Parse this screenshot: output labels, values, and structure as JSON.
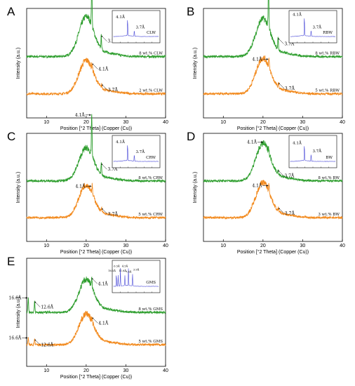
{
  "chart_data": [
    {
      "type": "line",
      "panel": "A",
      "xlabel": "Position [°2 Theta] (Copper (Cu))",
      "ylabel": "Intensity (a.u.)",
      "xlim": [
        5,
        40
      ],
      "xticks": [
        "10",
        "20",
        "30",
        "40"
      ],
      "series": [
        {
          "name": "8 wt.% CLW",
          "color": "#2e9e2e",
          "baseline": 0.56,
          "amorphous": 0.36,
          "sharp": [
            {
              "x": 21.4,
              "h": 0.44
            },
            {
              "x": 23.8,
              "h": 0.12
            }
          ]
        },
        {
          "name": "2 wt.% CLW",
          "color": "#f28a1e",
          "baseline": 0.22,
          "amorphous": 0.3,
          "sharp": [
            {
              "x": 21.5,
              "h": 0.05
            },
            {
              "x": 23.9,
              "h": 0.03
            }
          ]
        }
      ],
      "annotations": [
        {
          "text": "4.1Å",
          "x": 21.4,
          "series": 0,
          "dir": "left"
        },
        {
          "text": "3.7Å",
          "x": 23.8,
          "series": 0,
          "dir": "right"
        },
        {
          "text": "4.1Å",
          "x": 21.5,
          "series": 1,
          "dir": "right"
        },
        {
          "text": "3.7Å",
          "x": 23.9,
          "series": 1,
          "dir": "right"
        }
      ],
      "inset": {
        "name": "CLW",
        "peaks": [
          "4.1Å",
          "3.7Å"
        ],
        "heights": [
          0.85,
          0.3
        ]
      }
    },
    {
      "type": "line",
      "panel": "B",
      "xlabel": "Position [°2 Theta] (Copper (Cu))",
      "ylabel": "Intensity (a.u.)",
      "xlim": [
        5,
        40
      ],
      "xticks": [
        "10",
        "20",
        "30",
        "40"
      ],
      "series": [
        {
          "name": "8 wt.% RBW",
          "color": "#2e9e2e",
          "baseline": 0.56,
          "amorphous": 0.34,
          "sharp": [
            {
              "x": 21.4,
              "h": 0.42
            },
            {
              "x": 23.8,
              "h": 0.1
            }
          ]
        },
        {
          "name": "5 wt.% RBW",
          "color": "#f28a1e",
          "baseline": 0.22,
          "amorphous": 0.32,
          "sharp": [
            {
              "x": 21.5,
              "h": 0.08
            },
            {
              "x": 23.9,
              "h": 0.04
            }
          ]
        }
      ],
      "annotations": [
        {
          "text": "4.1Å",
          "x": 21.4,
          "series": 0,
          "dir": "left"
        },
        {
          "text": "3.7Å",
          "x": 23.8,
          "series": 0,
          "dir": "right"
        },
        {
          "text": "4.1Å",
          "x": 21.5,
          "series": 1,
          "dir": "left"
        },
        {
          "text": "3.7Å",
          "x": 23.9,
          "series": 1,
          "dir": "right"
        }
      ],
      "inset": {
        "name": "RBW",
        "peaks": [
          "4.1Å",
          "3.7Å"
        ],
        "heights": [
          0.95,
          0.3
        ]
      }
    },
    {
      "type": "line",
      "panel": "C",
      "xlabel": "Position [°2 Theta] (Copper (Cu))",
      "ylabel": "Intensity (a.u.)",
      "xlim": [
        5,
        40
      ],
      "xticks": [
        "10",
        "20",
        "30",
        "40"
      ],
      "series": [
        {
          "name": "8 wt.% CRW",
          "color": "#2e9e2e",
          "baseline": 0.56,
          "amorphous": 0.3,
          "sharp": [
            {
              "x": 21.4,
              "h": 0.38
            },
            {
              "x": 23.8,
              "h": 0.1
            }
          ]
        },
        {
          "name": "5 wt.% CRW",
          "color": "#f28a1e",
          "baseline": 0.22,
          "amorphous": 0.3,
          "sharp": [
            {
              "x": 21.5,
              "h": 0.07
            },
            {
              "x": 23.9,
              "h": 0.03
            }
          ]
        }
      ],
      "annotations": [
        {
          "text": "4.1Å",
          "x": 21.4,
          "series": 0,
          "dir": "left"
        },
        {
          "text": "3.7Å",
          "x": 23.8,
          "series": 0,
          "dir": "right"
        },
        {
          "text": "4.1Å",
          "x": 21.5,
          "series": 1,
          "dir": "left"
        },
        {
          "text": "3.7Å",
          "x": 23.9,
          "series": 1,
          "dir": "right"
        }
      ],
      "inset": {
        "name": "CRW",
        "peaks": [
          "4.1Å",
          "3.7Å"
        ],
        "heights": [
          0.85,
          0.32
        ]
      }
    },
    {
      "type": "line",
      "panel": "D",
      "xlabel": "Position [°2 Theta] (Copper (Cu))",
      "ylabel": "Intensity (a.u.)",
      "xlim": [
        5,
        40
      ],
      "xticks": [
        "10",
        "20",
        "30",
        "40"
      ],
      "series": [
        {
          "name": "8 wt.% BW",
          "color": "#2e9e2e",
          "baseline": 0.56,
          "amorphous": 0.34,
          "sharp": [
            {
              "x": 21.4,
              "h": 0.05
            },
            {
              "x": 23.8,
              "h": 0.03
            }
          ]
        },
        {
          "name": "3 wt.% BW",
          "color": "#f28a1e",
          "baseline": 0.22,
          "amorphous": 0.32,
          "sharp": [
            {
              "x": 21.5,
              "h": 0.06
            },
            {
              "x": 23.9,
              "h": 0.03
            }
          ]
        }
      ],
      "annotations": [
        {
          "text": "4.1Å",
          "x": 20.2,
          "series": 0,
          "dir": "left"
        },
        {
          "text": "3.7Å",
          "x": 23.8,
          "series": 0,
          "dir": "right"
        },
        {
          "text": "4.1Å",
          "x": 21.5,
          "series": 1,
          "dir": "left"
        },
        {
          "text": "3.7Å",
          "x": 23.9,
          "series": 1,
          "dir": "right"
        }
      ],
      "inset": {
        "name": "BW",
        "peaks": [
          "4.1Å",
          "3.7Å"
        ],
        "heights": [
          0.8,
          0.35
        ]
      }
    },
    {
      "type": "line",
      "panel": "E",
      "xlabel": "Position [°2 Theta] (Copper (Cu))",
      "ylabel": "Intensity (a.u.)",
      "xlim": [
        5,
        40
      ],
      "xticks": [
        "10",
        "20",
        "30",
        "40"
      ],
      "series": [
        {
          "name": "8 wt.% GMS",
          "color": "#2e9e2e",
          "baseline": 0.5,
          "amorphous": 0.3,
          "sharp": [
            {
              "x": 5.4,
              "h": 0.14
            },
            {
              "x": 7.0,
              "h": 0.1
            },
            {
              "x": 21.4,
              "h": 0.08
            }
          ]
        },
        {
          "name": "5 wt.% GMS",
          "color": "#f28a1e",
          "baseline": 0.2,
          "amorphous": 0.28,
          "sharp": [
            {
              "x": 5.4,
              "h": 0.07
            },
            {
              "x": 7.0,
              "h": 0.05
            },
            {
              "x": 21.5,
              "h": 0.04
            }
          ]
        }
      ],
      "annotations": [
        {
          "text": "16.6Å",
          "x": 5.4,
          "series": 0,
          "dir": "left"
        },
        {
          "text": "12.6Å",
          "x": 7.0,
          "series": 0,
          "dir": "right"
        },
        {
          "text": "4.1Å",
          "x": 21.4,
          "series": 0,
          "dir": "right"
        },
        {
          "text": "16.6Å",
          "x": 5.4,
          "series": 1,
          "dir": "left"
        },
        {
          "text": "12.6Å",
          "x": 7.0,
          "series": 1,
          "dir": "right"
        },
        {
          "text": "4.1Å",
          "x": 21.5,
          "series": 1,
          "dir": "right"
        }
      ],
      "inset": {
        "name": "GMS",
        "peaks": [
          "16.5Å",
          "11.6Å",
          "6.5Å",
          "7.6Å",
          "4.5Å",
          "3.9Å"
        ],
        "heights": [
          0.6,
          0.5,
          0.8,
          0.45,
          0.8,
          0.55
        ]
      }
    }
  ]
}
